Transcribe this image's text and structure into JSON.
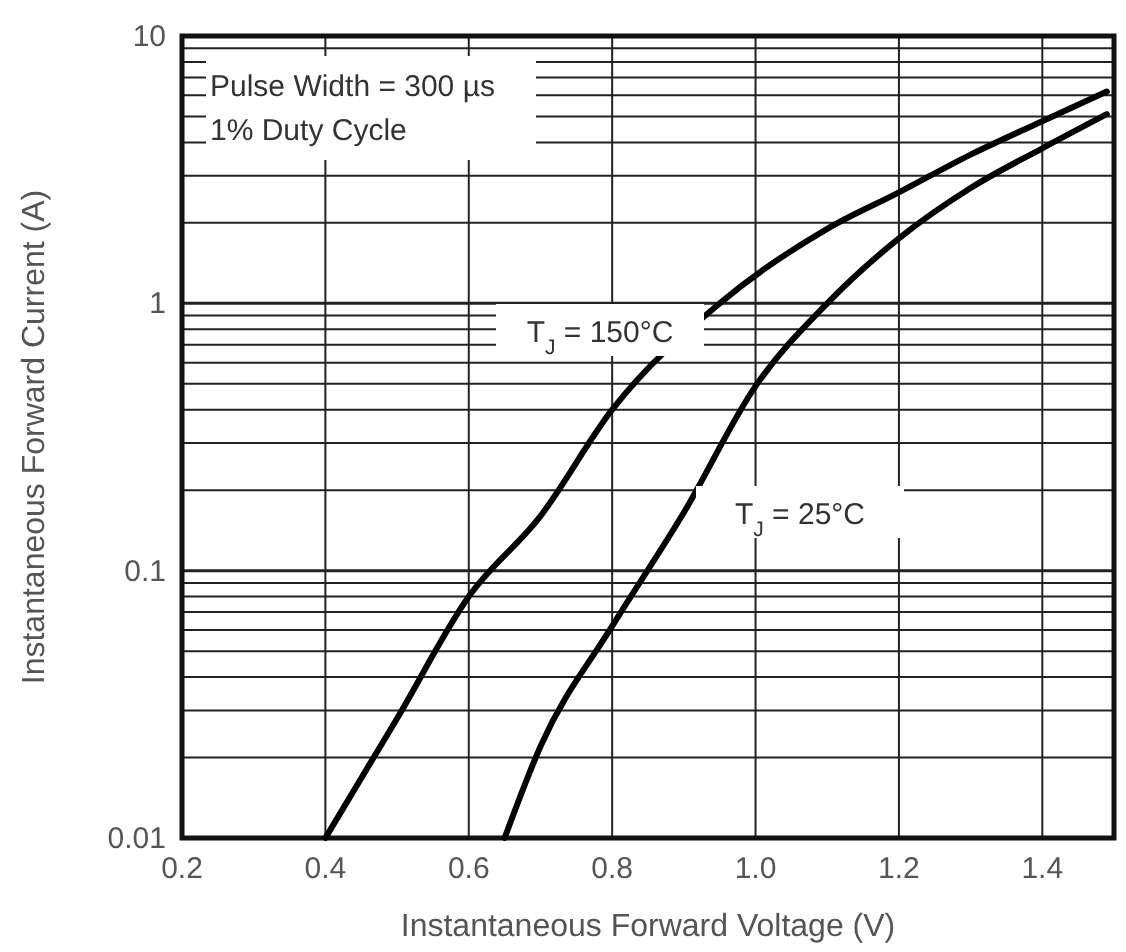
{
  "chart_data": {
    "type": "line",
    "xlabel": "Instantaneous Forward Voltage (V)",
    "ylabel": "Instantaneous Forward Current (A)",
    "xlim": [
      0.2,
      1.5
    ],
    "xticks": [
      {
        "value": 0.2,
        "label": "0.2"
      },
      {
        "value": 0.4,
        "label": "0.4"
      },
      {
        "value": 0.6,
        "label": "0.6"
      },
      {
        "value": 0.8,
        "label": "0.8"
      },
      {
        "value": 1.0,
        "label": "1.0"
      },
      {
        "value": 1.2,
        "label": "1.2"
      },
      {
        "value": 1.4,
        "label": "1.4"
      }
    ],
    "ylim": [
      0.01,
      10
    ],
    "yticks": [
      0.01,
      0.1,
      1,
      10
    ],
    "log": "y",
    "grid": true,
    "marker": "none",
    "line_style": "solid",
    "series": [
      {
        "name": "T$_{J}$ = 150°C",
        "color": "#000000",
        "x": [
          0.4,
          0.5,
          0.6,
          0.7,
          0.8,
          0.95,
          1.1,
          1.2,
          1.3,
          1.4,
          1.49
        ],
        "values": [
          0.01,
          0.028,
          0.08,
          0.16,
          0.4,
          1.0,
          1.9,
          2.6,
          3.6,
          4.8,
          6.2
        ]
      },
      {
        "name": "T$_{J}$ = 25°C",
        "color": "#000000",
        "x": [
          0.65,
          0.7,
          0.8,
          0.9,
          1.0,
          1.1,
          1.2,
          1.3,
          1.4,
          1.49
        ],
        "values": [
          0.01,
          0.022,
          0.062,
          0.165,
          0.49,
          1.0,
          1.75,
          2.7,
          3.8,
          5.1
        ]
      }
    ],
    "annotations": [
      "Pulse Width = 300 µs\n1% Duty Cycle"
    ]
  }
}
